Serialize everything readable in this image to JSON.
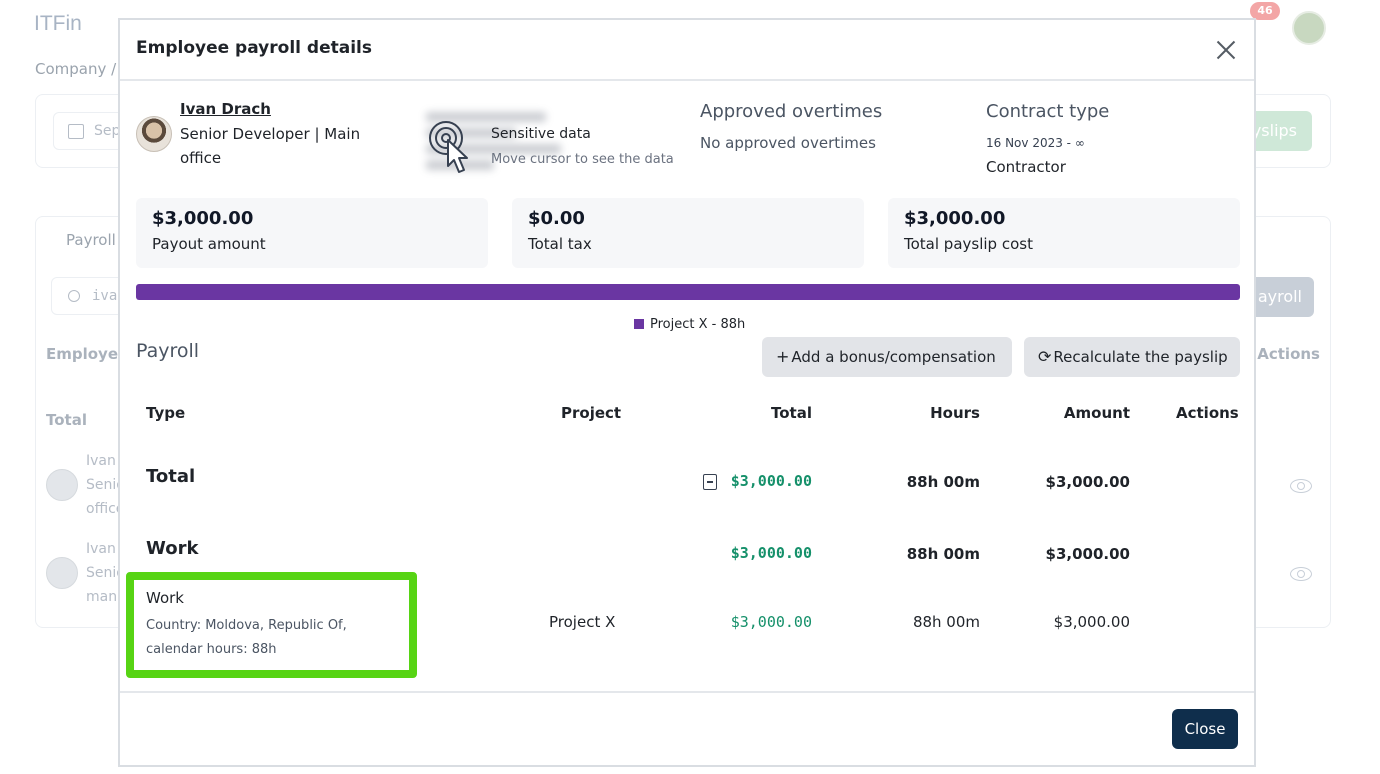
{
  "background": {
    "logo": "ITFin",
    "breadcrumb": "Company /",
    "notification_count": "46",
    "date_placeholder": "Sep",
    "payslips_button": "yslips",
    "tab_label": "Payroll",
    "search_value": "iva",
    "payroll_button": "ayroll",
    "col_employee": "Employee",
    "col_actions": "Actions",
    "total_label": "Total",
    "rows": [
      {
        "line1": "Ivan",
        "line2": "Senio",
        "line3": "office"
      },
      {
        "line1": "Ivan",
        "line2": "Senio",
        "line3": "mana"
      }
    ]
  },
  "modal": {
    "title": "Employee payroll details",
    "employee": {
      "name": "Ivan Drach",
      "role": "Senior Developer | Main office"
    },
    "sensitive": {
      "title": "Sensitive data",
      "subtitle": "Move cursor to see the data"
    },
    "overtimes": {
      "title": "Approved overtimes",
      "value": "No approved overtimes"
    },
    "contract": {
      "title": "Contract type",
      "dates": "16 Nov 2023 - ∞",
      "type": "Contractor"
    },
    "stats": [
      {
        "value": "$3,000.00",
        "label": "Payout amount"
      },
      {
        "value": "$0.00",
        "label": "Total tax"
      },
      {
        "value": "$3,000.00",
        "label": "Total payslip cost"
      }
    ],
    "distribution": {
      "color": "#6a36a2",
      "legend": "Project X - 88h",
      "fraction": 1.0
    },
    "payroll": {
      "section_title": "Payroll",
      "add_button": "Add a bonus/compensation",
      "recalc_button": "Recalculate the payslip",
      "columns": {
        "type": "Type",
        "project": "Project",
        "total": "Total",
        "hours": "Hours",
        "amount": "Amount",
        "actions": "Actions"
      },
      "total_row": {
        "type": "Total",
        "total": "$3,000.00",
        "hours": "88h 00m",
        "amount": "$3,000.00"
      },
      "group_row": {
        "type": "Work",
        "total": "$3,000.00",
        "hours": "88h 00m",
        "amount": "$3,000.00"
      },
      "item_row": {
        "type": "Work",
        "description": "Country: Moldova, Republic Of, calendar hours: 88h",
        "project": "Project X",
        "total": "$3,000.00",
        "hours": "88h 00m",
        "amount": "$3,000.00"
      }
    },
    "close_button": "Close"
  }
}
